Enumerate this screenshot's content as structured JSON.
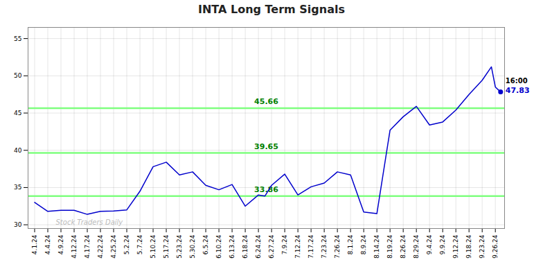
{
  "chart_data": {
    "type": "line",
    "title": "INTA Long Term Signals",
    "x": [
      0,
      1,
      2,
      3,
      4,
      5,
      6,
      7,
      8,
      9,
      10,
      11,
      12,
      13,
      14,
      15,
      16,
      17,
      17.5,
      18,
      19,
      20,
      21,
      22,
      23,
      24,
      25,
      26,
      27,
      28,
      29,
      30,
      31,
      32,
      33,
      34,
      34.7,
      35,
      35.4
    ],
    "values": [
      33.0,
      31.8,
      31.95,
      31.95,
      31.4,
      31.8,
      31.85,
      32.0,
      34.5,
      37.8,
      38.4,
      36.7,
      37.1,
      35.3,
      34.7,
      35.4,
      32.5,
      34.0,
      33.86,
      35.3,
      36.8,
      34.0,
      35.1,
      35.6,
      37.1,
      36.7,
      31.7,
      31.5,
      42.7,
      44.5,
      45.9,
      43.4,
      43.8,
      45.4,
      47.5,
      49.4,
      51.2,
      48.5,
      47.83
    ],
    "color": "#0000cc",
    "xlim": [
      -0.5,
      35.7
    ],
    "xticks": [
      {
        "value": 0,
        "label": "4.1.24"
      },
      {
        "value": 1,
        "label": "4.4.24"
      },
      {
        "value": 2,
        "label": "4.9.24"
      },
      {
        "value": 3,
        "label": "4.12.24"
      },
      {
        "value": 4,
        "label": "4.17.24"
      },
      {
        "value": 5,
        "label": "4.22.24"
      },
      {
        "value": 6,
        "label": "4.25.24"
      },
      {
        "value": 7,
        "label": "5.2.24"
      },
      {
        "value": 8,
        "label": "5.7.24"
      },
      {
        "value": 9,
        "label": "5.10.24"
      },
      {
        "value": 10,
        "label": "5.17.24"
      },
      {
        "value": 11,
        "label": "5.23.24"
      },
      {
        "value": 12,
        "label": "5.30.24"
      },
      {
        "value": 13,
        "label": "6.5.24"
      },
      {
        "value": 14,
        "label": "6.10.24"
      },
      {
        "value": 15,
        "label": "6.13.24"
      },
      {
        "value": 16,
        "label": "6.18.24"
      },
      {
        "value": 17,
        "label": "6.24.24"
      },
      {
        "value": 18,
        "label": "6.27.24"
      },
      {
        "value": 19,
        "label": "7.9.24"
      },
      {
        "value": 20,
        "label": "7.12.24"
      },
      {
        "value": 21,
        "label": "7.17.24"
      },
      {
        "value": 22,
        "label": "7.23.24"
      },
      {
        "value": 23,
        "label": "7.26.24"
      },
      {
        "value": 24,
        "label": "8.1.24"
      },
      {
        "value": 25,
        "label": "8.9.24"
      },
      {
        "value": 26,
        "label": "8.14.24"
      },
      {
        "value": 27,
        "label": "8.19.24"
      },
      {
        "value": 28,
        "label": "8.26.24"
      },
      {
        "value": 29,
        "label": "8.29.24"
      },
      {
        "value": 30,
        "label": "9.4.24"
      },
      {
        "value": 31,
        "label": "9.9.24"
      },
      {
        "value": 32,
        "label": "9.12.24"
      },
      {
        "value": 33,
        "label": "9.18.24"
      },
      {
        "value": 34,
        "label": "9.23.24"
      },
      {
        "value": 35,
        "label": "9.26.24"
      }
    ],
    "ylim": [
      29.5,
      56.5
    ],
    "yticks": [
      30,
      35,
      40,
      45,
      50,
      55
    ],
    "grid": true,
    "hlines": {
      "values": [
        33.86,
        39.65,
        45.66
      ],
      "labels": [
        "33.86",
        "39.65",
        "45.66"
      ],
      "color": "#7fff7f",
      "label_color": "#008000"
    },
    "end_point": {
      "x": 35.4,
      "y": 47.83,
      "color": "#0000cc",
      "labels": [
        "16:00",
        "47.83"
      ]
    },
    "watermark": "Stock Traders Daily"
  }
}
